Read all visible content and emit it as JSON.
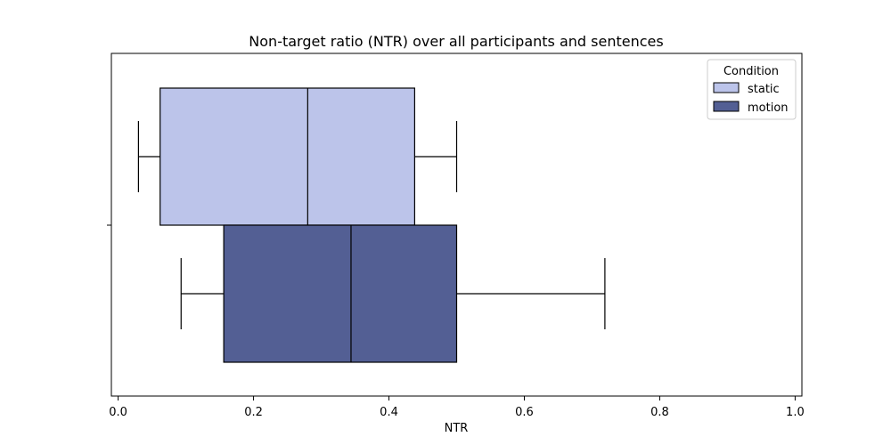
{
  "chart_data": {
    "type": "boxplot",
    "orientation": "horizontal",
    "title": "Non-target ratio (NTR) over all participants and sentences",
    "xlabel": "NTR",
    "ylabel": "",
    "xlim": [
      -0.01,
      1.01
    ],
    "xticks": [
      0.0,
      0.2,
      0.4,
      0.6,
      0.8,
      1.0
    ],
    "xtick_labels": [
      "0.0",
      "0.2",
      "0.4",
      "0.6",
      "0.8",
      "1.0"
    ],
    "grid": false,
    "legend": {
      "title": "Condition",
      "placement": "top-right"
    },
    "series": [
      {
        "name": "static",
        "color": "#bcc4ea",
        "whisker_low": 0.03,
        "q1": 0.062,
        "median": 0.28,
        "q3": 0.438,
        "whisker_high": 0.5
      },
      {
        "name": "motion",
        "color": "#535f94",
        "whisker_low": 0.093,
        "q1": 0.156,
        "median": 0.344,
        "q3": 0.5,
        "whisker_high": 0.719
      }
    ]
  }
}
